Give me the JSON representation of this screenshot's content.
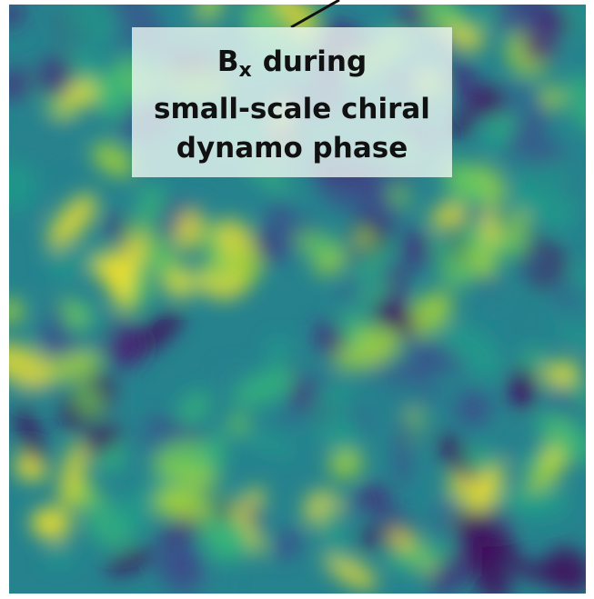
{
  "label": {
    "symbol": "B",
    "subscript": "x",
    "lines": [
      "during",
      "small-scale chiral",
      "dynamo phase"
    ]
  }
}
